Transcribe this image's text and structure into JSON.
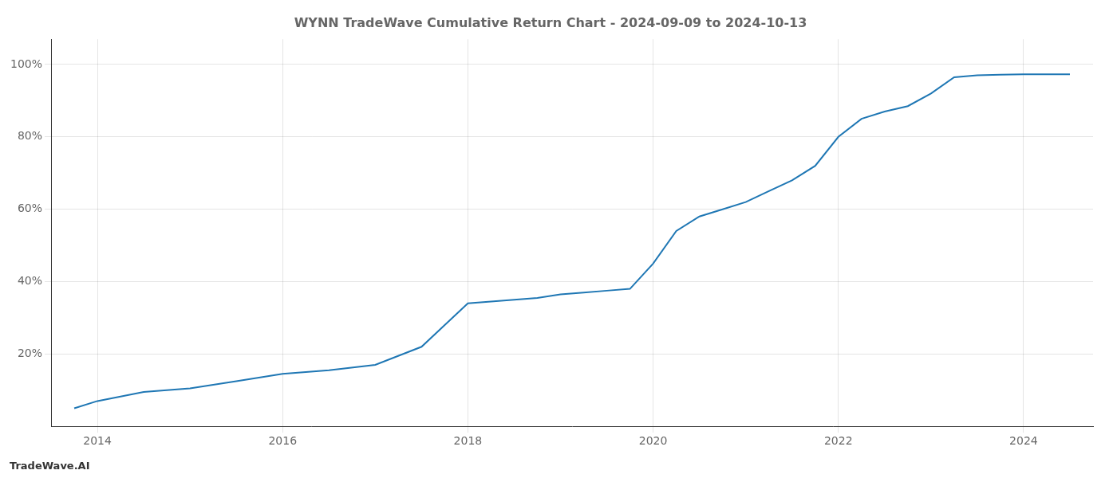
{
  "chart_data": {
    "type": "line",
    "title": "WYNN TradeWave Cumulative Return Chart - 2024-09-09 to 2024-10-13",
    "annotations": [
      "TradeWave.AI"
    ],
    "x": [
      2013.75,
      2014.0,
      2014.5,
      2015.0,
      2015.5,
      2016.0,
      2016.5,
      2017.0,
      2017.5,
      2017.75,
      2018.0,
      2018.25,
      2018.5,
      2018.75,
      2019.0,
      2019.25,
      2019.5,
      2019.75,
      2020.0,
      2020.25,
      2020.5,
      2020.75,
      2021.0,
      2021.25,
      2021.5,
      2021.75,
      2022.0,
      2022.25,
      2022.5,
      2022.75,
      2023.0,
      2023.25,
      2023.5,
      2023.75,
      2024.0,
      2024.25,
      2024.5
    ],
    "values": [
      5.0,
      7.0,
      9.5,
      10.5,
      12.5,
      14.5,
      15.5,
      17.0,
      22.0,
      28.0,
      34.0,
      34.5,
      35.0,
      35.5,
      36.5,
      37.0,
      37.5,
      38.0,
      45.0,
      54.0,
      58.0,
      60.0,
      62.0,
      65.0,
      68.0,
      72.0,
      80.0,
      85.0,
      87.0,
      88.5,
      92.0,
      96.5,
      97.0,
      97.2,
      97.3,
      97.3,
      97.3
    ],
    "color": "#1f77b4",
    "xlim": [
      2013.5,
      2024.75
    ],
    "ylim": [
      0,
      107
    ],
    "xticks": [
      2014,
      2016,
      2018,
      2020,
      2022,
      2024
    ],
    "yticks": [
      {
        "value": 20,
        "label": "20%"
      },
      {
        "value": 40,
        "label": "40%"
      },
      {
        "value": 60,
        "label": "60%"
      },
      {
        "value": 80,
        "label": "80%"
      },
      {
        "value": 100,
        "label": "100%"
      }
    ],
    "grid": true
  }
}
